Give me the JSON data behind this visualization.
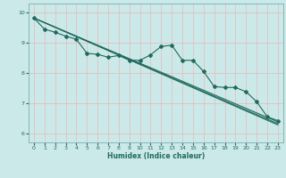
{
  "xlabel": "Humidex (Indice chaleur)",
  "xlim": [
    -0.5,
    23.5
  ],
  "ylim": [
    5.7,
    10.3
  ],
  "yticks": [
    6,
    7,
    8,
    9,
    10
  ],
  "xticks": [
    0,
    1,
    2,
    3,
    4,
    5,
    6,
    7,
    8,
    9,
    10,
    11,
    12,
    13,
    14,
    15,
    16,
    17,
    18,
    19,
    20,
    21,
    22,
    23
  ],
  "background_color": "#cce9e9",
  "grid_color": "#e8b8b8",
  "line_color": "#1f6b5e",
  "wavy_line": {
    "x": [
      0,
      1,
      2,
      3,
      4,
      5,
      6,
      7,
      8,
      9,
      10,
      11,
      12,
      13,
      14,
      15,
      16,
      17,
      18,
      19,
      20,
      21,
      22,
      23
    ],
    "y": [
      9.82,
      9.45,
      9.35,
      9.22,
      9.12,
      8.65,
      8.62,
      8.52,
      8.58,
      8.42,
      8.42,
      8.6,
      8.88,
      8.92,
      8.42,
      8.42,
      8.05,
      7.55,
      7.52,
      7.52,
      7.38,
      7.05,
      6.55,
      6.42
    ]
  },
  "straight_lines": [
    {
      "x0": 0,
      "y0": 9.82,
      "x1": 23,
      "y1": 6.38
    },
    {
      "x0": 0,
      "y0": 9.82,
      "x1": 23,
      "y1": 6.32
    },
    {
      "x0": 0,
      "y0": 9.82,
      "x1": 23,
      "y1": 6.28
    }
  ]
}
